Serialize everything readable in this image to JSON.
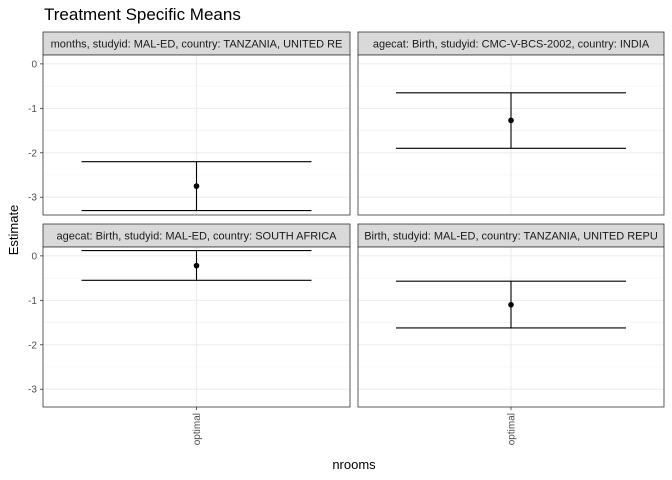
{
  "chart_data": {
    "type": "errorbar",
    "title": "Treatment Specific Means",
    "xlabel": "nrooms",
    "ylabel": "Estimate",
    "ylim": [
      -3.4,
      0.2
    ],
    "yticks": [
      0,
      -1,
      -2,
      -3
    ],
    "layout": "2x2 facet grid",
    "grid": true,
    "panels": [
      {
        "strip": "months, studyid: MAL-ED, country: TANZANIA, UNITED RE",
        "category": "optimal",
        "estimate": -2.75,
        "lower": -3.3,
        "upper": -2.2
      },
      {
        "strip": "agecat: Birth, studyid: CMC-V-BCS-2002, country: INDIA",
        "category": "optimal",
        "estimate": -1.27,
        "lower": -1.9,
        "upper": -0.65
      },
      {
        "strip": "agecat: Birth, studyid: MAL-ED, country: SOUTH AFRICA",
        "category": "optimal",
        "estimate": -0.22,
        "lower": -0.55,
        "upper": 0.12
      },
      {
        "strip": "Birth, studyid: MAL-ED, country: TANZANIA, UNITED REPU",
        "category": "optimal",
        "estimate": -1.1,
        "lower": -1.62,
        "upper": -0.57
      }
    ]
  }
}
